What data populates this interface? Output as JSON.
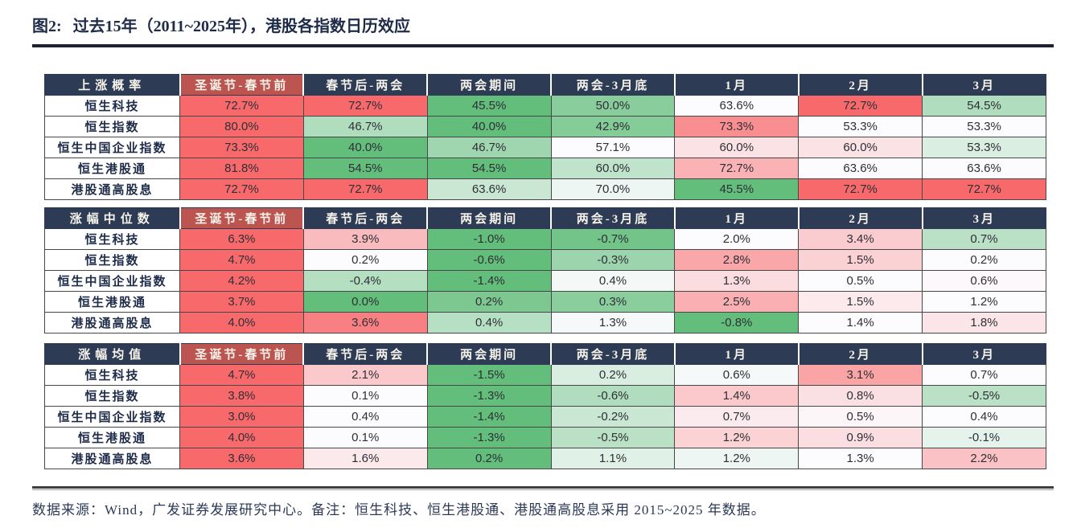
{
  "title": {
    "prefix": "图2:",
    "text": "过去15年（2011~2025年），港股各指数日历效应"
  },
  "colors": {
    "header_navy": "#2d3b54",
    "header_red": "#bc5450",
    "header_text": "#f6f3ea",
    "scale_green": "#63be7b",
    "scale_mid": "#fcfcff",
    "scale_red": "#f8696b",
    "title_navy": "#1e2b49",
    "grid_line": "#474747"
  },
  "chart_data": [
    {
      "type": "heatmap",
      "title": "上涨概率",
      "columns": [
        "圣诞节-春节前",
        "春节后-两会",
        "两会期间",
        "两会-3月底",
        "1月",
        "2月",
        "3月"
      ],
      "rows": [
        "恒生科技",
        "恒生指数",
        "恒生中国企业指数",
        "恒生港股通",
        "港股通高股息"
      ],
      "values": [
        [
          72.7,
          72.7,
          45.5,
          50.0,
          63.6,
          72.7,
          54.5
        ],
        [
          80.0,
          46.7,
          40.0,
          42.9,
          73.3,
          53.3,
          53.3
        ],
        [
          73.3,
          40.0,
          46.7,
          57.1,
          60.0,
          60.0,
          53.3
        ],
        [
          81.8,
          54.5,
          54.5,
          60.0,
          72.7,
          63.6,
          63.6
        ],
        [
          72.7,
          72.7,
          63.6,
          70.0,
          45.5,
          72.7,
          72.7
        ]
      ],
      "unit": "%",
      "value_format": "one_decimal_percent",
      "color_scale": "per_row_min_green_median_white_max_red",
      "legend_position": "none",
      "grid": true
    },
    {
      "type": "heatmap",
      "title": "涨幅中位数",
      "columns": [
        "圣诞节-春节前",
        "春节后-两会",
        "两会期间",
        "两会-3月底",
        "1月",
        "2月",
        "3月"
      ],
      "rows": [
        "恒生科技",
        "恒生指数",
        "恒生中国企业指数",
        "恒生港股通",
        "港股通高股息"
      ],
      "values": [
        [
          6.3,
          3.9,
          -1.0,
          -0.7,
          2.0,
          3.4,
          0.7
        ],
        [
          4.7,
          0.2,
          -0.6,
          -0.3,
          2.8,
          1.5,
          0.2
        ],
        [
          4.2,
          -0.4,
          -1.4,
          0.4,
          1.3,
          0.5,
          0.6
        ],
        [
          3.7,
          0.0,
          0.2,
          0.3,
          2.5,
          1.5,
          1.2
        ],
        [
          4.0,
          3.6,
          0.4,
          1.3,
          -0.8,
          1.4,
          1.8
        ]
      ],
      "unit": "%",
      "value_format": "one_decimal_percent",
      "color_scale": "per_row_min_green_median_white_max_red",
      "legend_position": "none",
      "grid": true
    },
    {
      "type": "heatmap",
      "title": "涨幅均值",
      "columns": [
        "圣诞节-春节前",
        "春节后-两会",
        "两会期间",
        "两会-3月底",
        "1月",
        "2月",
        "3月"
      ],
      "rows": [
        "恒生科技",
        "恒生指数",
        "恒生中国企业指数",
        "恒生港股通",
        "港股通高股息"
      ],
      "values": [
        [
          4.7,
          2.1,
          -1.5,
          0.2,
          0.6,
          3.1,
          0.7
        ],
        [
          3.8,
          0.1,
          -1.3,
          -0.6,
          1.4,
          0.8,
          -0.5
        ],
        [
          3.0,
          0.4,
          -1.4,
          -0.2,
          0.7,
          0.5,
          0.4
        ],
        [
          4.0,
          0.1,
          -1.3,
          -0.5,
          1.2,
          0.9,
          -0.1
        ],
        [
          3.6,
          1.6,
          0.2,
          1.1,
          1.2,
          1.3,
          2.2
        ]
      ],
      "unit": "%",
      "value_format": "one_decimal_percent",
      "color_scale": "per_row_min_green_median_white_max_red",
      "legend_position": "none",
      "grid": true
    }
  ],
  "footer": {
    "text": "数据来源：Wind，广发证券发展研究中心。备注：恒生科技、恒生港股通、港股通高股息采用 2015~2025 年数据。"
  }
}
